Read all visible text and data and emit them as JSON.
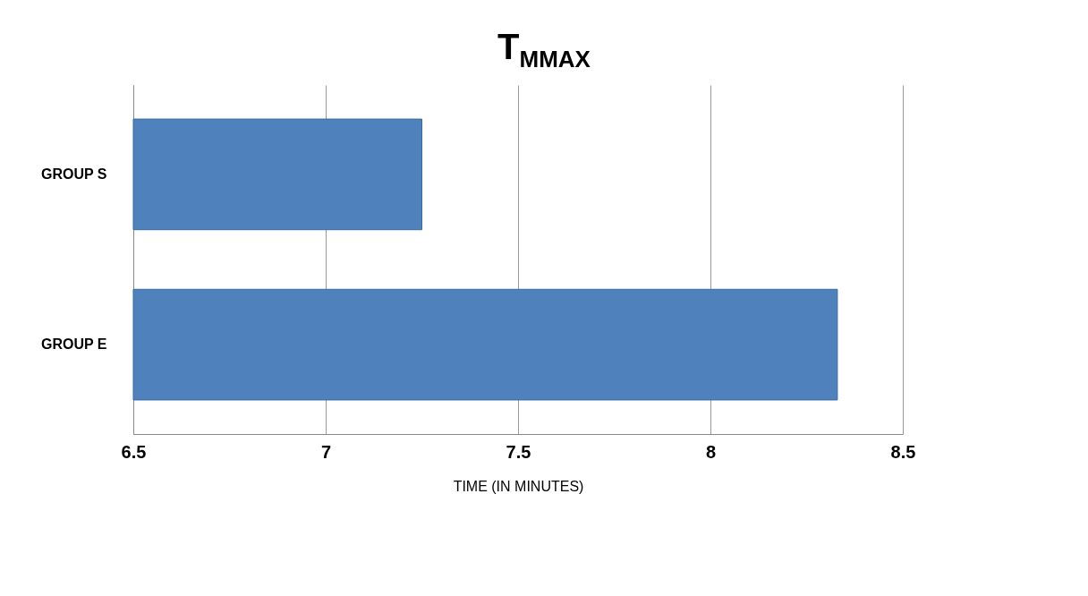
{
  "chart_data": {
    "type": "bar",
    "orientation": "horizontal",
    "title": "T$_{MMAX}$",
    "xlabel": "TIME (IN MINUTES)",
    "categories": [
      "GROUP S",
      "GROUP E"
    ],
    "values": [
      7.25,
      8.33
    ],
    "color": "#4f81bd",
    "xlim": [
      6.5,
      8.5
    ],
    "xticks": [
      6.5,
      7,
      7.5,
      8,
      8.5
    ],
    "grid": "x"
  }
}
